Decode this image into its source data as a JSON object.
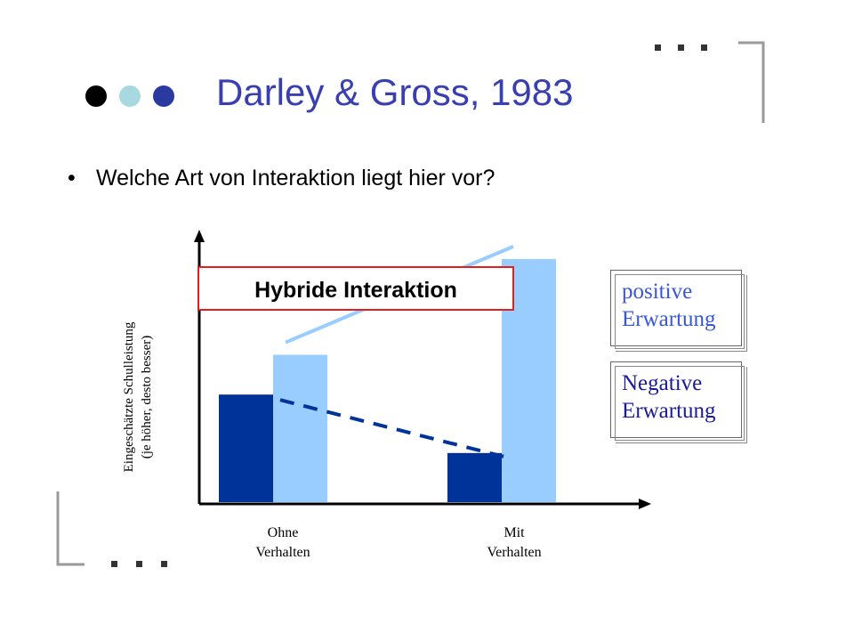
{
  "slide": {
    "title": "Darley & Gross, 1983",
    "bullet": "Welche Art von Interaktion liegt hier vor?",
    "deco_dot_colors": [
      "#000000",
      "#a8d8e0",
      "#2a3aa0"
    ]
  },
  "annotation": "Hybride Interaktion",
  "legend": {
    "positive": [
      "positive",
      "Erwartung"
    ],
    "negative": [
      "Negative",
      "Erwartung"
    ],
    "positive_color": "#3a56d8",
    "negative_color": "#1a1a9a"
  },
  "chart_data": {
    "type": "bar",
    "title": "",
    "ylabel": [
      "Eingeschätzte Schulleistung",
      "(je höher, desto besser)"
    ],
    "xlabel": "",
    "categories": [
      [
        "Ohne",
        "Verhalten"
      ],
      [
        "Mit",
        "Verhalten"
      ]
    ],
    "series": [
      {
        "name": "Negative Erwartung",
        "color": "#003399",
        "values": [
          4.6,
          2.1
        ]
      },
      {
        "name": "positive Erwartung",
        "color": "#99ccff",
        "values": [
          6.3,
          10.4
        ]
      }
    ],
    "ylim": [
      0,
      11.5
    ],
    "grid": false,
    "trend_lines": [
      {
        "series": "positive Erwartung",
        "style": "solid",
        "color": "#99ccff"
      },
      {
        "series": "Negative Erwartung",
        "style": "dashed",
        "color": "#003399"
      }
    ]
  }
}
